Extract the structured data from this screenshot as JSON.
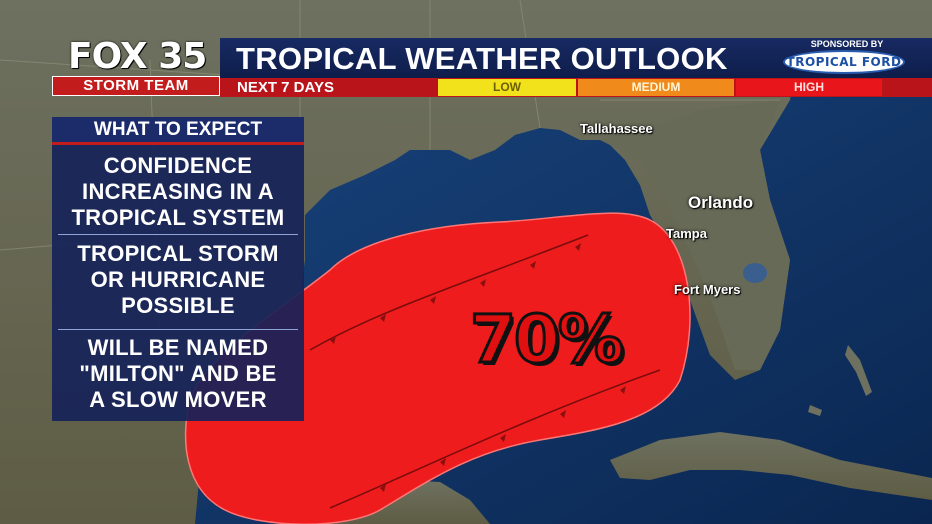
{
  "header": {
    "brand": "FOX 35",
    "brand_sub": "STORM TEAM",
    "title": "TROPICAL WEATHER OUTLOOK",
    "subtitle": "NEXT 7 DAYS",
    "sponsor_label": "SPONSORED BY",
    "sponsor_name": "TROPICAL FORD"
  },
  "legend": [
    {
      "label": "LOW",
      "color": "#f2e21b"
    },
    {
      "label": "MEDIUM",
      "color": "#f08a1a"
    },
    {
      "label": "HIGH",
      "color": "#e8161b"
    }
  ],
  "panel": {
    "heading": "WHAT TO EXPECT",
    "items": [
      "CONFIDENCE INCREASING IN A TROPICAL SYSTEM",
      "TROPICAL STORM OR HURRICANE POSSIBLE",
      "WILL BE NAMED \"MILTON\" AND BE A SLOW MOVER"
    ],
    "item_lines": [
      [
        "CONFIDENCE",
        "INCREASING IN A",
        "TROPICAL SYSTEM"
      ],
      [
        "TROPICAL STORM",
        "OR HURRICANE",
        "POSSIBLE"
      ],
      [
        "WILL BE NAMED",
        "\"MILTON\" AND BE",
        "A SLOW MOVER"
      ]
    ]
  },
  "map": {
    "cities": [
      "Tallahassee",
      "Orlando",
      "Tampa",
      "Fort Myers"
    ],
    "probability": "70%",
    "probability_level": 0.7,
    "probability_category": "HIGH",
    "area_color": "#e8161b"
  }
}
